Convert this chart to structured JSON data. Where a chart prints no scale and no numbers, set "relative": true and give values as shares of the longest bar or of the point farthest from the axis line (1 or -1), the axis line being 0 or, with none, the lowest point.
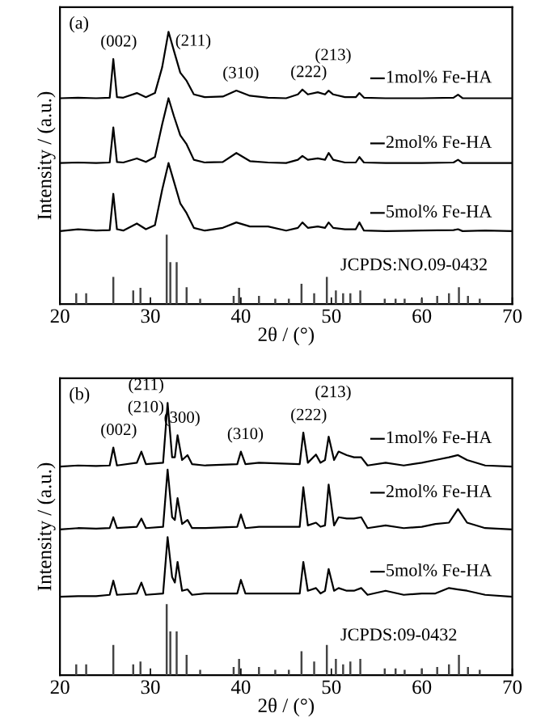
{
  "chart_data": [
    {
      "type": "line",
      "relative": true,
      "xlabel": "2θ / (°)",
      "ylabel": "Intensity / (a.u.)",
      "xlim": [
        20,
        70
      ],
      "xticks": [
        20,
        30,
        40,
        50,
        60,
        70
      ],
      "grid": false,
      "legend": "right",
      "annotations": [
        "(a)",
        {
          "text": "(002)",
          "x": 26,
          "y": 0.9
        },
        {
          "text": "(211)",
          "x": 32,
          "y": 1.0
        },
        {
          "text": "(310)",
          "x": 39.5,
          "y": 0.784
        },
        {
          "text": "(222)",
          "x": 47,
          "y": 0.788
        },
        {
          "text": "(213)",
          "x": 49.7,
          "y": 0.784
        }
      ],
      "x": [
        20,
        22,
        24,
        25.5,
        25.9,
        26.3,
        27,
        28.5,
        29.5,
        30.5,
        31.3,
        32,
        32.6,
        33.3,
        34,
        34.8,
        36,
        38,
        39.5,
        41,
        43,
        45,
        46.3,
        46.8,
        47.4,
        48.5,
        49.3,
        49.7,
        50.2,
        51.5,
        52.7,
        53.1,
        53.6,
        56,
        60,
        63.5,
        64,
        64.5,
        67,
        70
      ],
      "series": [
        {
          "name": "1mol% Fe-HA",
          "color": "#000000",
          "values": [
            0.756,
            0.758,
            0.756,
            0.758,
            0.9,
            0.76,
            0.758,
            0.775,
            0.76,
            0.775,
            0.87,
            1.0,
            0.93,
            0.85,
            0.82,
            0.77,
            0.76,
            0.762,
            0.784,
            0.765,
            0.758,
            0.756,
            0.77,
            0.788,
            0.77,
            0.778,
            0.77,
            0.784,
            0.77,
            0.76,
            0.76,
            0.775,
            0.758,
            0.756,
            0.756,
            0.758,
            0.769,
            0.756,
            0.756,
            0.756
          ]
        },
        {
          "name": "2mol% Fe-HA",
          "color": "#000000",
          "values": [
            0.518,
            0.52,
            0.518,
            0.52,
            0.649,
            0.522,
            0.52,
            0.535,
            0.522,
            0.54,
            0.66,
            0.756,
            0.69,
            0.62,
            0.587,
            0.53,
            0.52,
            0.522,
            0.555,
            0.525,
            0.52,
            0.518,
            0.53,
            0.544,
            0.53,
            0.535,
            0.53,
            0.555,
            0.53,
            0.52,
            0.52,
            0.54,
            0.52,
            0.518,
            0.518,
            0.52,
            0.53,
            0.518,
            0.518,
            0.518
          ]
        },
        {
          "name": "5mol% Fe-HA",
          "color": "#000000",
          "values": [
            0.268,
            0.275,
            0.27,
            0.272,
            0.405,
            0.275,
            0.27,
            0.296,
            0.275,
            0.29,
            0.42,
            0.518,
            0.45,
            0.37,
            0.334,
            0.28,
            0.27,
            0.28,
            0.3,
            0.285,
            0.285,
            0.27,
            0.28,
            0.3,
            0.28,
            0.285,
            0.28,
            0.3,
            0.28,
            0.275,
            0.275,
            0.3,
            0.27,
            0.268,
            0.27,
            0.272,
            0.275,
            0.268,
            0.27,
            0.268
          ]
        },
        {
          "name": "JCPDS:NO.09-0432",
          "type": "bar",
          "color": "#444444",
          "x": [
            21.8,
            22.9,
            25.9,
            28.1,
            28.9,
            31.8,
            32.2,
            32.9,
            34.0,
            35.5,
            39.2,
            39.8,
            42.0,
            43.8,
            45.3,
            46.7,
            48.1,
            49.5,
            50.5,
            51.3,
            52.1,
            53.2,
            55.9,
            57.1,
            58.1,
            60.0,
            61.7,
            63.0,
            64.1,
            65.1,
            66.4
          ],
          "values": [
            0.04,
            0.04,
            0.1,
            0.05,
            0.06,
            0.255,
            0.154,
            0.154,
            0.062,
            0.02,
            0.03,
            0.06,
            0.03,
            0.02,
            0.02,
            0.075,
            0.04,
            0.1,
            0.05,
            0.04,
            0.04,
            0.05,
            0.02,
            0.02,
            0.02,
            0.02,
            0.03,
            0.04,
            0.062,
            0.03,
            0.02
          ]
        }
      ]
    },
    {
      "type": "line",
      "relative": true,
      "xlabel": "2θ / (°)",
      "ylabel": "Intensity / (a.u.)",
      "xlim": [
        20,
        70
      ],
      "xticks": [
        20,
        30,
        40,
        50,
        60,
        70
      ],
      "grid": false,
      "legend": "right",
      "annotations": [
        "(b)",
        {
          "text": "(002)",
          "x": 26,
          "y": 0.836
        },
        {
          "text": "(210)",
          "x": 29,
          "y": 0.821
        },
        {
          "text": "(211)",
          "x": 32,
          "y": 1.0
        },
        {
          "text": "(300)",
          "x": 33,
          "y": 0.881
        },
        {
          "text": "(310)",
          "x": 40,
          "y": 0.821
        },
        {
          "text": "(222)",
          "x": 47,
          "y": 0.891
        },
        {
          "text": "(213)",
          "x": 49.7,
          "y": 0.876
        }
      ],
      "x": [
        20,
        22,
        24,
        25.5,
        25.9,
        26.3,
        28.5,
        29.0,
        29.5,
        31.4,
        31.9,
        32.4,
        32.7,
        33.0,
        33.5,
        34.1,
        34.6,
        36,
        39.6,
        40.0,
        40.5,
        42,
        46.5,
        46.9,
        47.4,
        48.3,
        48.8,
        49.3,
        49.7,
        50.3,
        50.8,
        51.7,
        52.5,
        53.3,
        54,
        56,
        58,
        60,
        61.5,
        63,
        64,
        65,
        67,
        70
      ],
      "series": [
        {
          "name": "1mol% Fe-HA",
          "color": "#000000",
          "values": [
            0.766,
            0.77,
            0.768,
            0.77,
            0.836,
            0.77,
            0.78,
            0.821,
            0.775,
            0.78,
            1.0,
            0.8,
            0.8,
            0.881,
            0.79,
            0.808,
            0.775,
            0.77,
            0.775,
            0.821,
            0.775,
            0.78,
            0.775,
            0.891,
            0.78,
            0.81,
            0.78,
            0.79,
            0.876,
            0.79,
            0.821,
            0.808,
            0.8,
            0.8,
            0.77,
            0.78,
            0.77,
            0.78,
            0.79,
            0.8,
            0.808,
            0.79,
            0.77,
            0.766
          ]
        },
        {
          "name": "2mol% Fe-HA",
          "color": "#000000",
          "values": [
            0.535,
            0.54,
            0.538,
            0.54,
            0.58,
            0.54,
            0.545,
            0.575,
            0.54,
            0.545,
            0.755,
            0.58,
            0.57,
            0.65,
            0.555,
            0.57,
            0.54,
            0.54,
            0.545,
            0.59,
            0.54,
            0.545,
            0.545,
            0.69,
            0.55,
            0.56,
            0.545,
            0.55,
            0.7,
            0.55,
            0.58,
            0.575,
            0.575,
            0.58,
            0.54,
            0.55,
            0.54,
            0.545,
            0.555,
            0.56,
            0.61,
            0.56,
            0.54,
            0.535
          ]
        },
        {
          "name": "5mol% Fe-HA",
          "color": "#000000",
          "values": [
            0.288,
            0.29,
            0.29,
            0.295,
            0.347,
            0.295,
            0.3,
            0.34,
            0.295,
            0.3,
            0.507,
            0.36,
            0.34,
            0.416,
            0.31,
            0.315,
            0.295,
            0.3,
            0.3,
            0.35,
            0.3,
            0.3,
            0.3,
            0.416,
            0.31,
            0.32,
            0.3,
            0.31,
            0.39,
            0.31,
            0.32,
            0.31,
            0.31,
            0.32,
            0.295,
            0.31,
            0.295,
            0.3,
            0.3,
            0.32,
            0.315,
            0.31,
            0.295,
            0.288
          ]
        },
        {
          "name": "JCPDS:09-0432",
          "type": "bar",
          "color": "#444444",
          "x": [
            21.8,
            22.9,
            25.9,
            28.1,
            28.9,
            31.8,
            32.2,
            32.9,
            34.0,
            35.5,
            39.2,
            39.8,
            42.0,
            43.8,
            45.3,
            46.7,
            48.1,
            49.5,
            50.5,
            51.3,
            52.1,
            53.2,
            55.9,
            57.1,
            58.1,
            60.0,
            61.7,
            63.0,
            64.1,
            65.1,
            66.4
          ],
          "values": [
            0.04,
            0.04,
            0.111,
            0.04,
            0.05,
            0.261,
            0.161,
            0.161,
            0.075,
            0.02,
            0.03,
            0.06,
            0.03,
            0.02,
            0.02,
            0.088,
            0.05,
            0.111,
            0.06,
            0.04,
            0.05,
            0.06,
            0.025,
            0.025,
            0.02,
            0.025,
            0.03,
            0.04,
            0.075,
            0.03,
            0.02
          ]
        }
      ]
    }
  ]
}
